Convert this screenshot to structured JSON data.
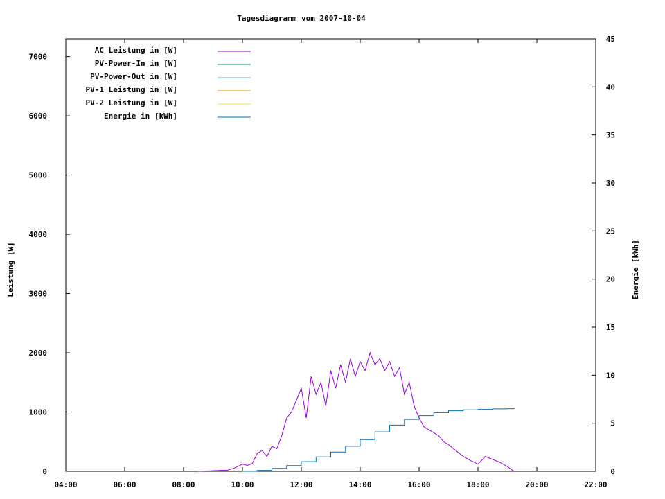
{
  "chart_data": {
    "type": "line",
    "title": "Tagesdiagramm vom 2007-10-04",
    "ylabel": "Leistung [W]",
    "y2label": "Energie [kWh]",
    "x_ticks": [
      "04:00",
      "06:00",
      "08:00",
      "10:00",
      "12:00",
      "14:00",
      "16:00",
      "18:00",
      "20:00",
      "22:00"
    ],
    "xlim_hours": [
      4,
      22
    ],
    "ylim": [
      0,
      7300
    ],
    "y_ticks": [
      0,
      1000,
      2000,
      3000,
      4000,
      5000,
      6000,
      7000
    ],
    "y2lim": [
      0,
      45
    ],
    "y2_ticks": [
      0,
      5,
      10,
      15,
      20,
      25,
      30,
      35,
      40,
      45
    ],
    "grid": false,
    "legend_position": "top-left",
    "series": [
      {
        "name": "AC Leistung in [W]",
        "color": "#9400d3",
        "axis": "left",
        "x": [
          "08:30",
          "09:00",
          "09:30",
          "09:45",
          "10:00",
          "10:10",
          "10:20",
          "10:30",
          "10:40",
          "10:50",
          "11:00",
          "11:10",
          "11:20",
          "11:30",
          "11:40",
          "11:50",
          "12:00",
          "12:10",
          "12:20",
          "12:30",
          "12:40",
          "12:50",
          "13:00",
          "13:10",
          "13:20",
          "13:30",
          "13:40",
          "13:50",
          "14:00",
          "14:10",
          "14:20",
          "14:30",
          "14:40",
          "14:50",
          "15:00",
          "15:10",
          "15:20",
          "15:30",
          "15:40",
          "15:50",
          "16:00",
          "16:10",
          "16:20",
          "16:30",
          "16:40",
          "16:50",
          "17:00",
          "17:15",
          "17:30",
          "17:45",
          "18:00",
          "18:15",
          "18:30",
          "18:45",
          "19:00",
          "19:10",
          "19:15"
        ],
        "values": [
          0,
          10,
          20,
          60,
          120,
          100,
          130,
          300,
          350,
          250,
          420,
          380,
          600,
          900,
          1000,
          1200,
          1400,
          900,
          1600,
          1300,
          1500,
          1100,
          1700,
          1400,
          1800,
          1500,
          1900,
          1600,
          1850,
          1700,
          2000,
          1800,
          1900,
          1700,
          1850,
          1600,
          1750,
          1300,
          1500,
          1100,
          900,
          750,
          700,
          650,
          600,
          500,
          450,
          350,
          250,
          180,
          120,
          250,
          200,
          150,
          80,
          20,
          0
        ]
      },
      {
        "name": "PV-Power-In in [W]",
        "color": "#009e73",
        "axis": "left",
        "values": []
      },
      {
        "name": "PV-Power-Out in [W]",
        "color": "#56b4e9",
        "axis": "left",
        "values": []
      },
      {
        "name": "PV-1 Leistung in [W]",
        "color": "#e69f00",
        "axis": "left",
        "values": []
      },
      {
        "name": "PV-2 Leistung in [W]",
        "color": "#f0e442",
        "axis": "left",
        "values": []
      },
      {
        "name": "Energie in [kWh]",
        "color": "#0072b2",
        "axis": "right",
        "x": [
          "10:00",
          "10:30",
          "11:00",
          "11:30",
          "12:00",
          "12:30",
          "13:00",
          "13:30",
          "14:00",
          "14:30",
          "15:00",
          "15:30",
          "16:00",
          "16:30",
          "17:00",
          "17:30",
          "18:00",
          "18:30",
          "19:00",
          "19:15"
        ],
        "values": [
          0,
          0.1,
          0.3,
          0.6,
          1.0,
          1.5,
          2.0,
          2.6,
          3.3,
          4.1,
          4.8,
          5.4,
          5.8,
          6.1,
          6.3,
          6.4,
          6.45,
          6.5,
          6.52,
          6.52
        ]
      }
    ]
  }
}
